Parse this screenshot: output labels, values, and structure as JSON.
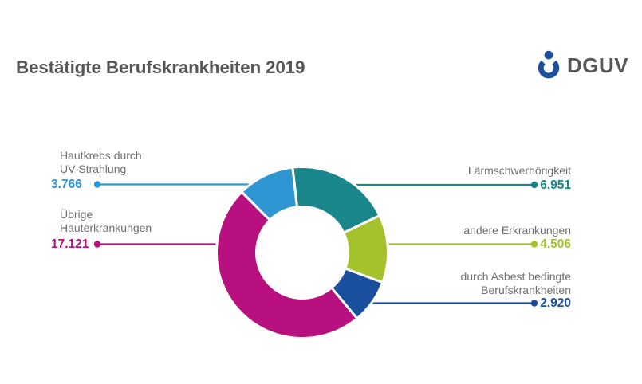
{
  "header": {
    "title": "Bestätigte Berufskrankheiten 2019",
    "title_color": "#575756",
    "logo": {
      "text": "DGUV",
      "symbol": "person-in-shell",
      "symbol_color": "#1C4F9E",
      "text_color": "#58585A"
    }
  },
  "chart_data": {
    "type": "pie",
    "subtype": "donut",
    "title": "Bestätigte Berufskrankheiten 2019",
    "direction": "clockwise",
    "start_angle_deg": -6.5,
    "inner_radius_ratio": 0.54,
    "background": "#FFFFFF",
    "label_color": "#706F6F",
    "legend_position": "callout-labels",
    "segments": [
      {
        "label": "Lärmschwerhörigkeit",
        "label_lines": [
          "Lärmschwerhörigkeit"
        ],
        "value": 6951,
        "display_value": "6.951",
        "color": "#19868B",
        "side": "right"
      },
      {
        "label": "andere Erkrankungen",
        "label_lines": [
          "andere Erkrankungen"
        ],
        "value": 4506,
        "display_value": "4.506",
        "color": "#A3C22C",
        "side": "right"
      },
      {
        "label": "durch Asbest bedingte Berufskrankheiten",
        "label_lines": [
          "durch Asbest bedingte",
          "Berufskrankheiten"
        ],
        "value": 2920,
        "display_value": "2.920",
        "color": "#1A4F9D",
        "side": "right"
      },
      {
        "label": "Übrige Hauterkrankungen",
        "label_lines": [
          "Übrige",
          "Hauterkrankungen"
        ],
        "value": 17121,
        "display_value": "17.121",
        "color": "#B8107E",
        "side": "left"
      },
      {
        "label": "Hautkrebs durch UV-Strahlung",
        "label_lines": [
          "Hautkrebs durch",
          "UV-Strahlung"
        ],
        "value": 3766,
        "display_value": "3.766",
        "color": "#2E97D3",
        "side": "left"
      }
    ]
  }
}
